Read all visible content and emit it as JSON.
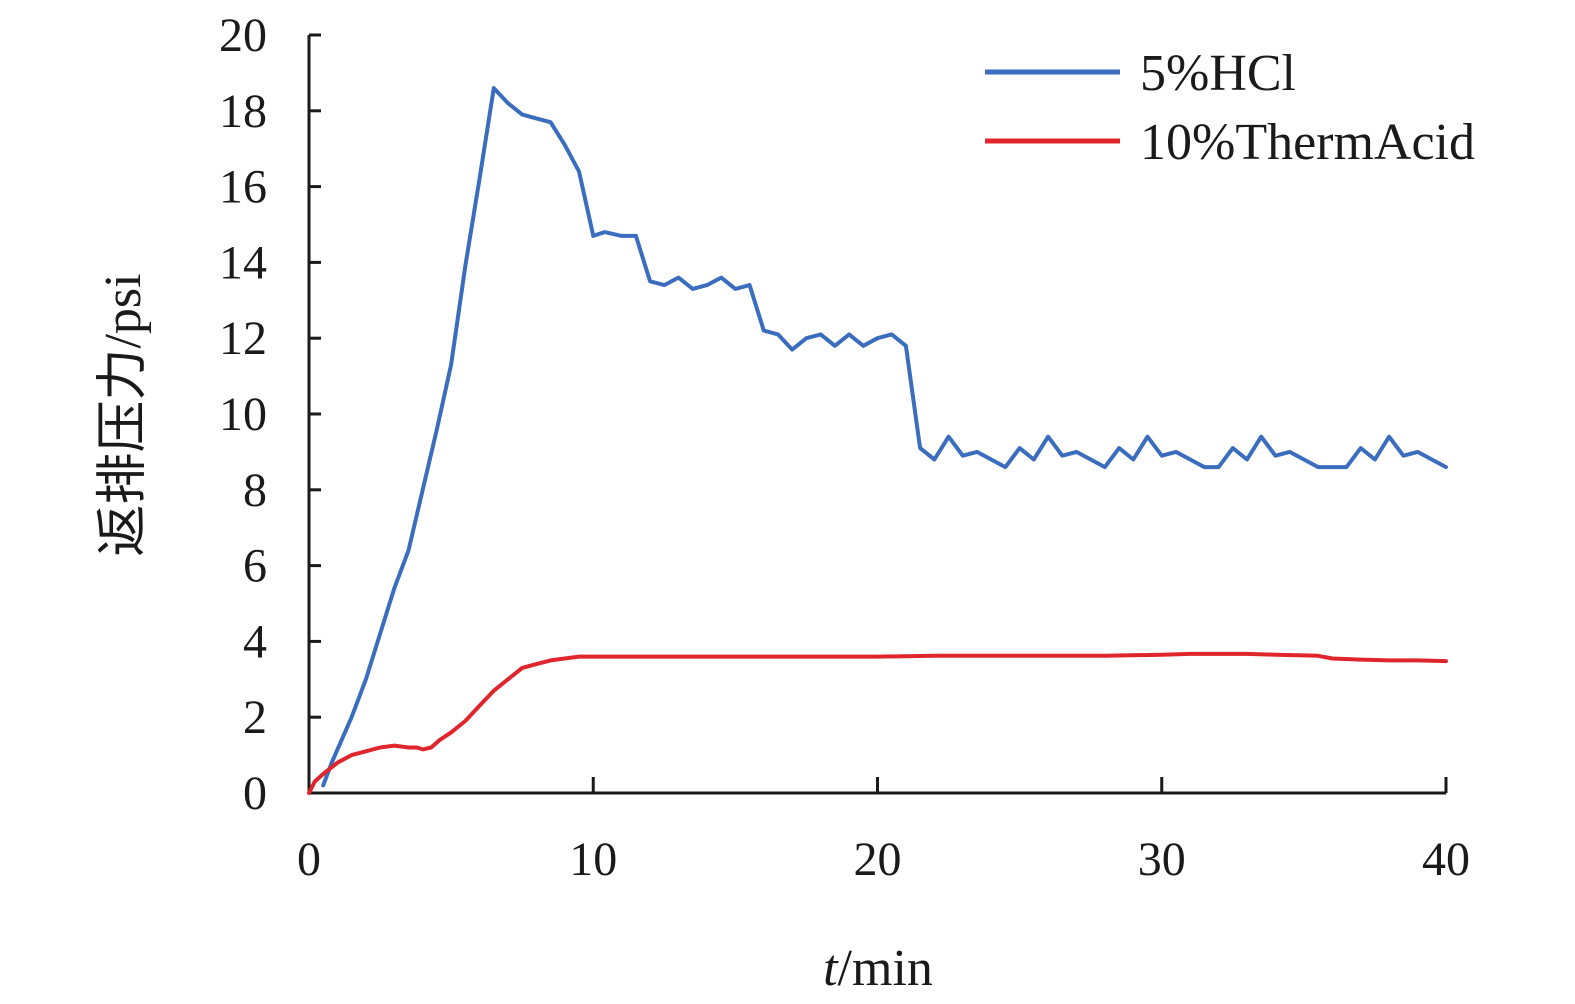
{
  "chart_data": {
    "type": "line",
    "xlabel": {
      "var": "t",
      "unit": "/min"
    },
    "ylabel": "返排压力/psi",
    "xlim": [
      0,
      40
    ],
    "ylim": [
      0,
      20
    ],
    "xticks": [
      0,
      10,
      20,
      30,
      40
    ],
    "yticks": [
      0,
      2,
      4,
      6,
      8,
      10,
      12,
      14,
      16,
      18,
      20
    ],
    "grid": false,
    "legend_position": "top-right",
    "series": [
      {
        "name": "5%HCl",
        "color": "#3b6dbf",
        "x": [
          0.5,
          0.8,
          1.5,
          2.0,
          2.5,
          3.0,
          3.5,
          4.0,
          4.5,
          5.0,
          5.5,
          6.0,
          6.5,
          7.0,
          7.5,
          8.0,
          8.5,
          9.0,
          9.5,
          10.0,
          10.4,
          11.0,
          11.5,
          12.0,
          12.5,
          13.0,
          13.5,
          14.0,
          14.5,
          15.0,
          15.5,
          16.0,
          16.5,
          17.0,
          17.5,
          18.0,
          18.5,
          19.0,
          19.5,
          20.0,
          20.5,
          21.0,
          21.5,
          22.0,
          22.5,
          23.0,
          23.5,
          24.0,
          24.5,
          25.0,
          25.5,
          26.0,
          26.5,
          27.0,
          27.5,
          28.0,
          28.5,
          29.0,
          29.5,
          30.0,
          30.5,
          31.0,
          31.5,
          32.0,
          32.5,
          33.0,
          33.5,
          34.0,
          34.5,
          35.0,
          35.5,
          36.0,
          36.5,
          37.0,
          37.5,
          38.0,
          38.5,
          39.0,
          39.5,
          40.0
        ],
        "y": [
          0.2,
          0.8,
          2.0,
          3.0,
          4.2,
          5.4,
          6.4,
          8.0,
          9.6,
          11.3,
          13.9,
          16.2,
          18.6,
          18.2,
          17.9,
          17.8,
          17.7,
          17.1,
          16.4,
          14.7,
          14.8,
          14.7,
          14.7,
          13.5,
          13.4,
          13.6,
          13.3,
          13.4,
          13.6,
          13.3,
          13.4,
          12.2,
          12.1,
          11.7,
          12.0,
          12.1,
          11.8,
          12.1,
          11.8,
          12.0,
          12.1,
          11.8,
          9.1,
          8.8,
          9.4,
          8.9,
          9.0,
          8.8,
          8.6,
          9.1,
          8.8,
          9.4,
          8.9,
          9.0,
          8.8,
          8.6,
          9.1,
          8.8,
          9.4,
          8.9,
          9.0,
          8.8,
          8.6,
          8.6,
          9.1,
          8.8,
          9.4,
          8.9,
          9.0,
          8.8,
          8.6,
          8.6,
          8.6,
          9.1,
          8.8,
          9.4,
          8.9,
          9.0,
          8.8,
          8.6
        ]
      },
      {
        "name": "10%ThermAcid",
        "color": "#e0262c",
        "x": [
          0.0,
          0.2,
          0.5,
          1.0,
          1.5,
          2.0,
          2.5,
          3.0,
          3.5,
          3.8,
          4.0,
          4.3,
          4.6,
          5.0,
          5.5,
          6.0,
          6.5,
          7.0,
          7.5,
          8.0,
          8.5,
          9.0,
          9.5,
          10.0,
          12.0,
          15.0,
          18.0,
          20.0,
          22.0,
          25.0,
          28.0,
          30.0,
          31.0,
          32.0,
          33.0,
          34.0,
          35.0,
          35.5,
          36.0,
          37.0,
          38.0,
          39.0,
          40.0
        ],
        "y": [
          0.0,
          0.3,
          0.5,
          0.8,
          1.0,
          1.1,
          1.2,
          1.25,
          1.2,
          1.2,
          1.15,
          1.2,
          1.4,
          1.6,
          1.9,
          2.3,
          2.7,
          3.0,
          3.3,
          3.4,
          3.5,
          3.55,
          3.6,
          3.6,
          3.6,
          3.6,
          3.6,
          3.6,
          3.62,
          3.62,
          3.62,
          3.65,
          3.67,
          3.67,
          3.67,
          3.65,
          3.63,
          3.62,
          3.55,
          3.52,
          3.5,
          3.5,
          3.48
        ]
      }
    ]
  }
}
